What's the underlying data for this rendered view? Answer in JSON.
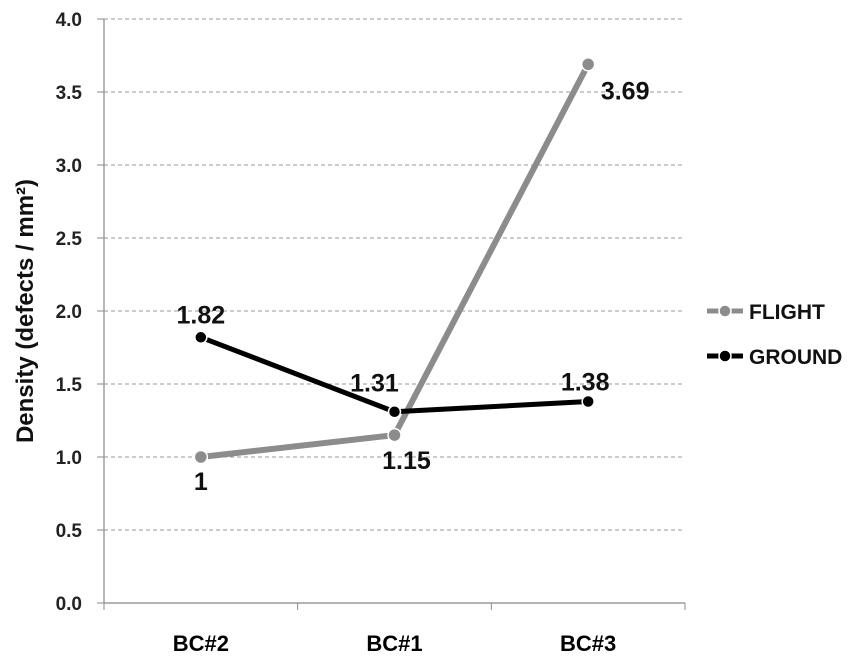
{
  "chart_data": {
    "type": "line",
    "categories": [
      "BC#2",
      "BC#1",
      "BC#3"
    ],
    "series": [
      {
        "name": "FLIGHT",
        "values": [
          1,
          1.15,
          3.69
        ],
        "labels": [
          "1",
          "1.15",
          "3.69"
        ],
        "color": "#8c8c8c"
      },
      {
        "name": "GROUND",
        "values": [
          1.82,
          1.31,
          1.38
        ],
        "labels": [
          "1.82",
          "1.31",
          "1.38"
        ],
        "color": "#000000"
      }
    ],
    "ylabel": "Density (defects / mm²)",
    "xlabel": "",
    "ylim": [
      0,
      4
    ],
    "yticks": [
      "0.0",
      "0.5",
      "1.0",
      "1.5",
      "2.0",
      "2.5",
      "3.0",
      "3.5",
      "4.0"
    ],
    "grid": "horizontal-dashed",
    "legend_position": "right"
  }
}
